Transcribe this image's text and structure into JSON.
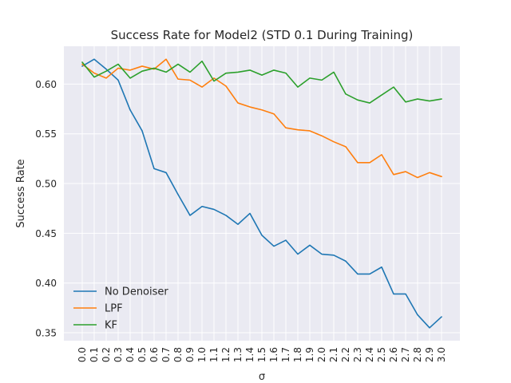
{
  "chart_data": {
    "type": "line",
    "title": "Success Rate for Model2 (STD 0.1 During Training)",
    "xlabel": "σ",
    "ylabel": "Success Rate",
    "x": [
      "0.0",
      "0.1",
      "0.2",
      "0.3",
      "0.4",
      "0.5",
      "0.6",
      "0.7",
      "0.8",
      "0.9",
      "1.0",
      "1.1",
      "1.2",
      "1.3",
      "1.4",
      "1.5",
      "1.6",
      "1.7",
      "1.8",
      "1.9",
      "2.0",
      "2.1",
      "2.2",
      "2.3",
      "2.4",
      "2.5",
      "2.6",
      "2.7",
      "2.8",
      "2.9",
      "3.0"
    ],
    "ylim": [
      0.342,
      0.638
    ],
    "yticks": [
      0.35,
      0.4,
      0.45,
      0.5,
      0.55,
      0.6
    ],
    "ytick_labels": [
      "0.35",
      "0.40",
      "0.45",
      "0.50",
      "0.55",
      "0.60"
    ],
    "grid": true,
    "legend_position": "lower-left",
    "series": [
      {
        "name": "No Denoiser",
        "color": "#1f77b4",
        "values": [
          0.618,
          0.625,
          0.615,
          0.604,
          0.574,
          0.553,
          0.515,
          0.511,
          0.489,
          0.468,
          0.477,
          0.474,
          0.468,
          0.459,
          0.47,
          0.448,
          0.437,
          0.443,
          0.429,
          0.438,
          0.429,
          0.428,
          0.422,
          0.409,
          0.409,
          0.416,
          0.389,
          0.389,
          0.368,
          0.355,
          0.366
        ]
      },
      {
        "name": "LPF",
        "color": "#ff7f0e",
        "values": [
          0.62,
          0.611,
          0.606,
          0.616,
          0.614,
          0.618,
          0.615,
          0.625,
          0.605,
          0.604,
          0.597,
          0.606,
          0.598,
          0.581,
          0.577,
          0.574,
          0.57,
          0.556,
          0.554,
          0.553,
          0.548,
          0.542,
          0.537,
          0.521,
          0.521,
          0.529,
          0.509,
          0.512,
          0.506,
          0.511,
          0.507
        ]
      },
      {
        "name": "KF",
        "color": "#2ca02c",
        "values": [
          0.622,
          0.607,
          0.613,
          0.62,
          0.606,
          0.613,
          0.616,
          0.612,
          0.62,
          0.612,
          0.623,
          0.603,
          0.611,
          0.612,
          0.614,
          0.609,
          0.614,
          0.611,
          0.597,
          0.606,
          0.604,
          0.612,
          0.59,
          0.584,
          0.581,
          0.589,
          0.597,
          0.582,
          0.585,
          0.583,
          0.585
        ]
      }
    ]
  }
}
